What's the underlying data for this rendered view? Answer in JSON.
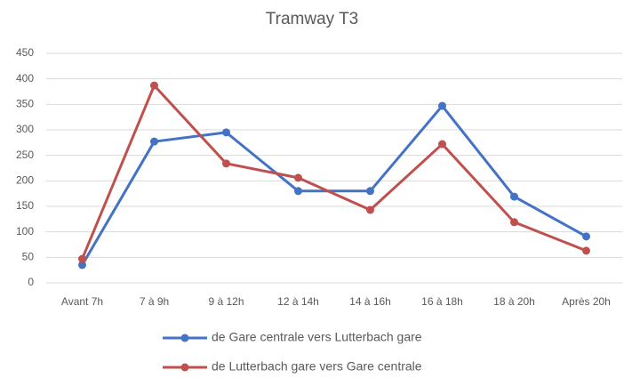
{
  "chart_data": {
    "type": "line",
    "title": "Tramway T3",
    "categories": [
      "Avant 7h",
      "7 à 9h",
      "9 à 12h",
      "12 à 14h",
      "14 à 16h",
      "16 à 18h",
      "18 à 20h",
      "Après 20h"
    ],
    "series": [
      {
        "name": "de Gare centrale vers Lutterbach gare",
        "color": "#4472c4",
        "values": [
          35,
          277,
          295,
          180,
          180,
          347,
          169,
          91
        ]
      },
      {
        "name": "de Lutterbach gare vers Gare centrale",
        "color": "#c0504d",
        "values": [
          47,
          387,
          234,
          206,
          143,
          272,
          119,
          63
        ]
      }
    ],
    "ylim": [
      0,
      450
    ],
    "yticks": [
      0,
      50,
      100,
      150,
      200,
      250,
      300,
      350,
      400,
      450
    ],
    "grid": true,
    "legend": "bottom"
  }
}
